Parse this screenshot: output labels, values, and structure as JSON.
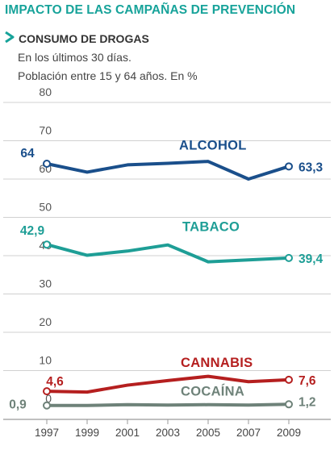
{
  "header": {
    "title": "IMPACTO DE LAS CAMPAÑAS DE PREVENCIÓN",
    "subtitle": "CONSUMO DE DROGAS",
    "note1": "En los últimos 30 días.",
    "note2": "Población entre 15 y 64 años. En %",
    "marker_icon": "chevron-right-icon"
  },
  "chart_data": {
    "type": "line",
    "title": "CONSUMO DE DROGAS",
    "xlabel": "",
    "ylabel": "",
    "ylim": [
      0,
      80
    ],
    "yticks": [
      "0",
      "10",
      "20",
      "30",
      "40",
      "50",
      "60",
      "70",
      "80"
    ],
    "x": [
      "1997",
      "1999",
      "2001",
      "2003",
      "2005",
      "2007",
      "2009"
    ],
    "grid": true,
    "series": [
      {
        "name": "ALCOHOL",
        "color": "#1a4f8b",
        "values": [
          64,
          61.8,
          63.7,
          64.1,
          64.6,
          60,
          63.3
        ],
        "start_label": "64",
        "end_label": "63,3"
      },
      {
        "name": "TABACO",
        "color": "#1e9e96",
        "values": [
          42.9,
          40.1,
          41.2,
          42.8,
          38.4,
          38.9,
          39.4
        ],
        "start_label": "42,9",
        "end_label": "39,4"
      },
      {
        "name": "CANNABIS",
        "color": "#b51f1f",
        "values": [
          4.6,
          4.4,
          6.2,
          7.4,
          8.5,
          7.1,
          7.6
        ],
        "start_label": "4,6",
        "end_label": "7,6"
      },
      {
        "name": "COCAÍNA",
        "color": "#6e8279",
        "values": [
          0.9,
          0.9,
          1.1,
          1.0,
          1.1,
          1.0,
          1.2
        ],
        "start_label": "0,9",
        "end_label": "1,2"
      }
    ]
  }
}
